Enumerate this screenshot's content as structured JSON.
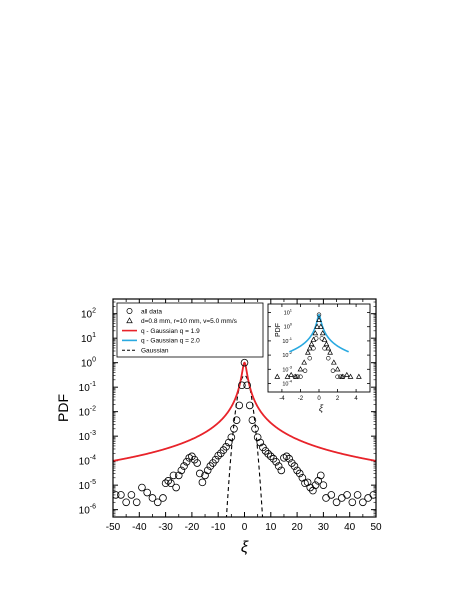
{
  "chart_data": [
    {
      "type": "scatter",
      "xlabel": "ξ",
      "ylabel": "PDF",
      "xlim": [
        -50,
        50
      ],
      "ylim_log10": [
        -6.3,
        2.6
      ],
      "yscale": "log",
      "x_ticks": [
        -50,
        -40,
        -30,
        -20,
        -10,
        0,
        10,
        20,
        30,
        40,
        50
      ],
      "x_tick_labels": [
        "-50",
        "-40",
        "-30",
        "-20",
        "-10",
        "0",
        "10",
        "20",
        "30",
        "40",
        "50"
      ],
      "y_tick_exponents": [
        -6,
        -5,
        -4,
        -3,
        -2,
        -1,
        0,
        1,
        2
      ],
      "y_tick_labels": [
        "10",
        "10",
        "10",
        "10",
        "10",
        "10",
        "10",
        "10",
        "10"
      ],
      "y_tick_sup": [
        "-6",
        "-5",
        "-4",
        "-3",
        "-2",
        "-1",
        "0",
        "1",
        "2"
      ],
      "legend_position": "top-left",
      "legend": [
        {
          "label": "all data",
          "marker": "circle"
        },
        {
          "label": "d=0.8 mm, r=10 mm, v=5.0 mm/s",
          "marker": "triangle"
        },
        {
          "label": "q - Gaussian  q = 1.9",
          "line": "solid",
          "color": "#e8232a"
        },
        {
          "label": "q - Gaussian  q = 2.0",
          "line": "solid",
          "color": "#29a9e0"
        },
        {
          "label": "Gaussian",
          "line": "dashed",
          "color": "#000000"
        }
      ],
      "series": [
        {
          "name": "all data",
          "marker": "circle",
          "points": [
            [
              -49,
              4e-06
            ],
            [
              -47,
              4e-06
            ],
            [
              -45,
              2e-06
            ],
            [
              -43,
              4e-06
            ],
            [
              -41,
              2e-06
            ],
            [
              -39,
              8e-06
            ],
            [
              -37,
              5e-06
            ],
            [
              -35,
              3e-06
            ],
            [
              -33,
              2e-06
            ],
            [
              -31,
              3e-06
            ],
            [
              -30,
              1.2e-05
            ],
            [
              -29,
              1.5e-05
            ],
            [
              -28,
              1.2e-05
            ],
            [
              -27,
              2.5e-05
            ],
            [
              -26,
              8e-06
            ],
            [
              -25,
              2.5e-05
            ],
            [
              -24,
              4e-05
            ],
            [
              -23,
              6e-05
            ],
            [
              -22,
              9e-05
            ],
            [
              -21,
              0.00013
            ],
            [
              -20,
              0.00015
            ],
            [
              -19,
              0.00011
            ],
            [
              -18,
              8e-05
            ],
            [
              -17,
              3e-05
            ],
            [
              -16,
              1.3e-05
            ],
            [
              -15,
              2.5e-05
            ],
            [
              -14,
              4e-05
            ],
            [
              -13,
              6e-05
            ],
            [
              -12,
              8e-05
            ],
            [
              -11,
              0.00011
            ],
            [
              -10,
              0.00016
            ],
            [
              -9,
              0.0002
            ],
            [
              -8,
              0.00027
            ],
            [
              -7,
              0.00037
            ],
            [
              -6,
              0.00055
            ],
            [
              -5,
              0.0009
            ],
            [
              -4,
              0.002
            ],
            [
              -3,
              0.0045
            ],
            [
              -2,
              0.018
            ],
            [
              -1,
              0.12
            ],
            [
              0,
              1.0
            ],
            [
              1,
              0.12
            ],
            [
              2,
              0.018
            ],
            [
              3,
              0.0045
            ],
            [
              4,
              0.002
            ],
            [
              5,
              0.0009
            ],
            [
              6,
              0.00055
            ],
            [
              7,
              0.00035
            ],
            [
              8,
              0.00025
            ],
            [
              9,
              0.00019
            ],
            [
              10,
              0.00015
            ],
            [
              11,
              0.00012
            ],
            [
              12,
              9e-05
            ],
            [
              13,
              6e-05
            ],
            [
              14,
              4e-05
            ],
            [
              15,
              0.00013
            ],
            [
              16,
              0.00015
            ],
            [
              17,
              0.00012
            ],
            [
              18,
              8e-05
            ],
            [
              19,
              6e-05
            ],
            [
              20,
              4e-05
            ],
            [
              21,
              3e-05
            ],
            [
              22,
              2e-05
            ],
            [
              23,
              1.2e-05
            ],
            [
              24,
              1.3e-05
            ],
            [
              25,
              8e-06
            ],
            [
              26,
              6e-06
            ],
            [
              27,
              1e-05
            ],
            [
              28,
              1.5e-05
            ],
            [
              29,
              2.5e-05
            ],
            [
              30,
              1e-05
            ],
            [
              31,
              3e-06
            ],
            [
              33,
              4e-06
            ],
            [
              35,
              2e-06
            ],
            [
              37,
              3e-06
            ],
            [
              39,
              4e-06
            ],
            [
              41,
              2e-06
            ],
            [
              43,
              4e-06
            ],
            [
              45,
              2e-06
            ],
            [
              47,
              3e-06
            ],
            [
              49,
              4e-06
            ]
          ]
        },
        {
          "name": "q - Gaussian  q = 1.9",
          "line": "solid",
          "color": "#e8232a",
          "q": 1.9,
          "beta": 1.8,
          "x_range": [
            -50,
            50
          ]
        },
        {
          "name": "Gaussian",
          "line": "dashed",
          "color": "#000000",
          "peak": 0.3,
          "sigma": 1.33,
          "x_range": [
            -8,
            8
          ]
        }
      ]
    },
    {
      "type": "scatter",
      "role": "inset",
      "xlabel": "ξ",
      "ylabel": "PDF",
      "xlim": [
        -5.5,
        5.5
      ],
      "ylim_log10": [
        -4.6,
        1.6
      ],
      "yscale": "log",
      "x_ticks": [
        -4,
        -2,
        0,
        2,
        4
      ],
      "x_tick_labels": [
        "-4",
        "-2",
        "0",
        "2",
        "4"
      ],
      "y_tick_exponents": [
        -4,
        -3,
        -2,
        -1,
        0,
        1
      ],
      "y_tick_labels": [
        "10",
        "10",
        "10",
        "10",
        "10",
        "10"
      ],
      "y_tick_sup": [
        "-4",
        "-3",
        "-2",
        "-1",
        "0",
        "1"
      ],
      "series": [
        {
          "name": "d=0.8 mm, r=10 mm, v=5.0 mm/s",
          "marker": "triangle",
          "points": [
            [
              -4.5,
              0.0003
            ],
            [
              -3.4,
              0.0003
            ],
            [
              -3.0,
              0.0004
            ],
            [
              -2.5,
              0.0003
            ],
            [
              -2.0,
              0.001
            ],
            [
              -1.6,
              0.003
            ],
            [
              -1.2,
              0.015
            ],
            [
              -1.0,
              0.03
            ],
            [
              -0.8,
              0.06
            ],
            [
              -0.6,
              0.12
            ],
            [
              -0.4,
              0.35
            ],
            [
              -0.2,
              1.0
            ],
            [
              0,
              3.0
            ],
            [
              0.2,
              1.0
            ],
            [
              0.4,
              0.35
            ],
            [
              0.6,
              0.12
            ],
            [
              0.8,
              0.06
            ],
            [
              1.0,
              0.03
            ],
            [
              1.2,
              0.015
            ],
            [
              1.6,
              0.003
            ],
            [
              2.0,
              0.001
            ],
            [
              2.5,
              0.0003
            ],
            [
              3.0,
              0.0004
            ],
            [
              3.4,
              0.0003
            ],
            [
              4.3,
              0.0003
            ]
          ]
        },
        {
          "name": "all data",
          "marker": "circle",
          "points": [
            [
              -2.6,
              0.0003
            ],
            [
              -2.3,
              0.0003
            ],
            [
              -2.0,
              0.0003
            ],
            [
              -1.5,
              0.0008
            ],
            [
              -1.0,
              0.006
            ],
            [
              -0.6,
              0.03
            ],
            [
              -0.3,
              0.15
            ],
            [
              0,
              7.0
            ],
            [
              0.3,
              0.15
            ],
            [
              0.6,
              0.03
            ],
            [
              1.0,
              0.006
            ],
            [
              1.5,
              0.0008
            ],
            [
              2.0,
              0.0003
            ],
            [
              2.3,
              0.0003
            ],
            [
              2.6,
              0.0003
            ]
          ]
        },
        {
          "name": "q - Gaussian  q = 2.0",
          "line": "solid",
          "color": "#29a9e0",
          "q": 2.0,
          "peak": 7.0,
          "beta": 40,
          "x_range": [
            -3.2,
            3.2
          ]
        }
      ]
    }
  ]
}
